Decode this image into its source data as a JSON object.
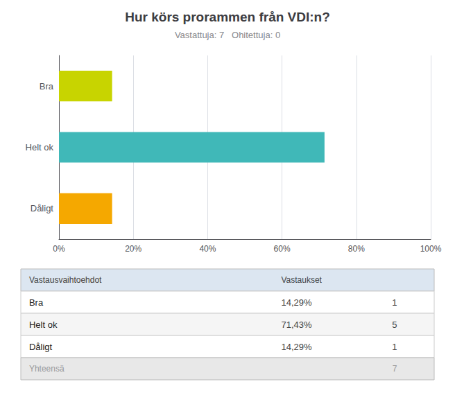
{
  "chart_data": {
    "type": "bar",
    "orientation": "horizontal",
    "title": "Hur körs prorammen från VDI:n?",
    "subtitle": "Vastattuja: 7   Ohitettuja: 0",
    "categories": [
      "Dåligt",
      "Helt ok",
      "Bra"
    ],
    "values": [
      14.29,
      71.43,
      14.29
    ],
    "colors": [
      "#f5a800",
      "#40b8b8",
      "#c8d400"
    ],
    "xlim": [
      0,
      100
    ],
    "xticks": [
      {
        "value": 0,
        "label": "0%"
      },
      {
        "value": 20,
        "label": "20%"
      },
      {
        "value": 40,
        "label": "40%"
      },
      {
        "value": 60,
        "label": "60%"
      },
      {
        "value": 80,
        "label": "80%"
      },
      {
        "value": 100,
        "label": "100%"
      }
    ],
    "grid": true,
    "table": {
      "columns": [
        "Vastausvaihtoehdot",
        "Vastaukset"
      ],
      "rows": [
        [
          "Bra",
          "14,29%",
          "1"
        ],
        [
          "Helt ok",
          "71,43%",
          "5"
        ],
        [
          "Dåligt",
          "14,29%",
          "1"
        ]
      ],
      "footer": [
        "Yhteensä",
        null,
        "7"
      ]
    }
  }
}
